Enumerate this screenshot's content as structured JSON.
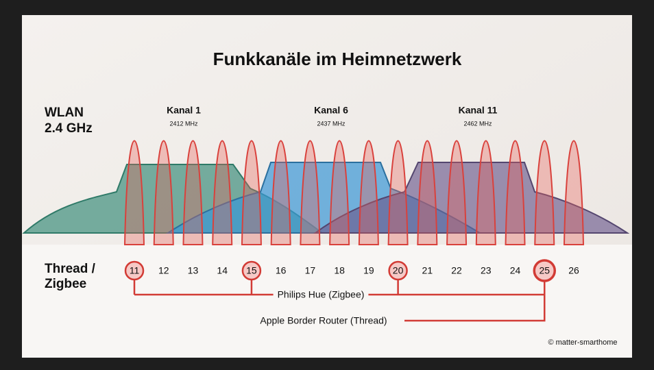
{
  "title": "Funkkanäle im Heimnetzwerk",
  "wlan": {
    "label_lines": [
      "WLAN",
      "2.4 GHz"
    ],
    "channels": [
      {
        "name": "Kanal 1",
        "frequency": "2412 MHz"
      },
      {
        "name": "Kanal 6",
        "frequency": "2437 MHz"
      },
      {
        "name": "Kanal 11",
        "frequency": "2462 MHz"
      }
    ]
  },
  "thread": {
    "label_lines": [
      "Thread /",
      "Zigbee"
    ],
    "channels": [
      {
        "number": 11,
        "circled": true
      },
      {
        "number": 12,
        "circled": false
      },
      {
        "number": 13,
        "circled": false
      },
      {
        "number": 14,
        "circled": false
      },
      {
        "number": 15,
        "circled": true
      },
      {
        "number": 16,
        "circled": false
      },
      {
        "number": 17,
        "circled": false
      },
      {
        "number": 18,
        "circled": false
      },
      {
        "number": 19,
        "circled": false
      },
      {
        "number": 20,
        "circled": true
      },
      {
        "number": 21,
        "circled": false
      },
      {
        "number": 22,
        "circled": false
      },
      {
        "number": 23,
        "circled": false
      },
      {
        "number": 24,
        "circled": false
      },
      {
        "number": 25,
        "circled": true
      },
      {
        "number": 26,
        "circled": false
      }
    ]
  },
  "connections": [
    {
      "label": "Philips Hue (Zigbee)"
    },
    {
      "label": "Apple Border Router (Thread)"
    }
  ],
  "credit": "© matter-smarthome"
}
